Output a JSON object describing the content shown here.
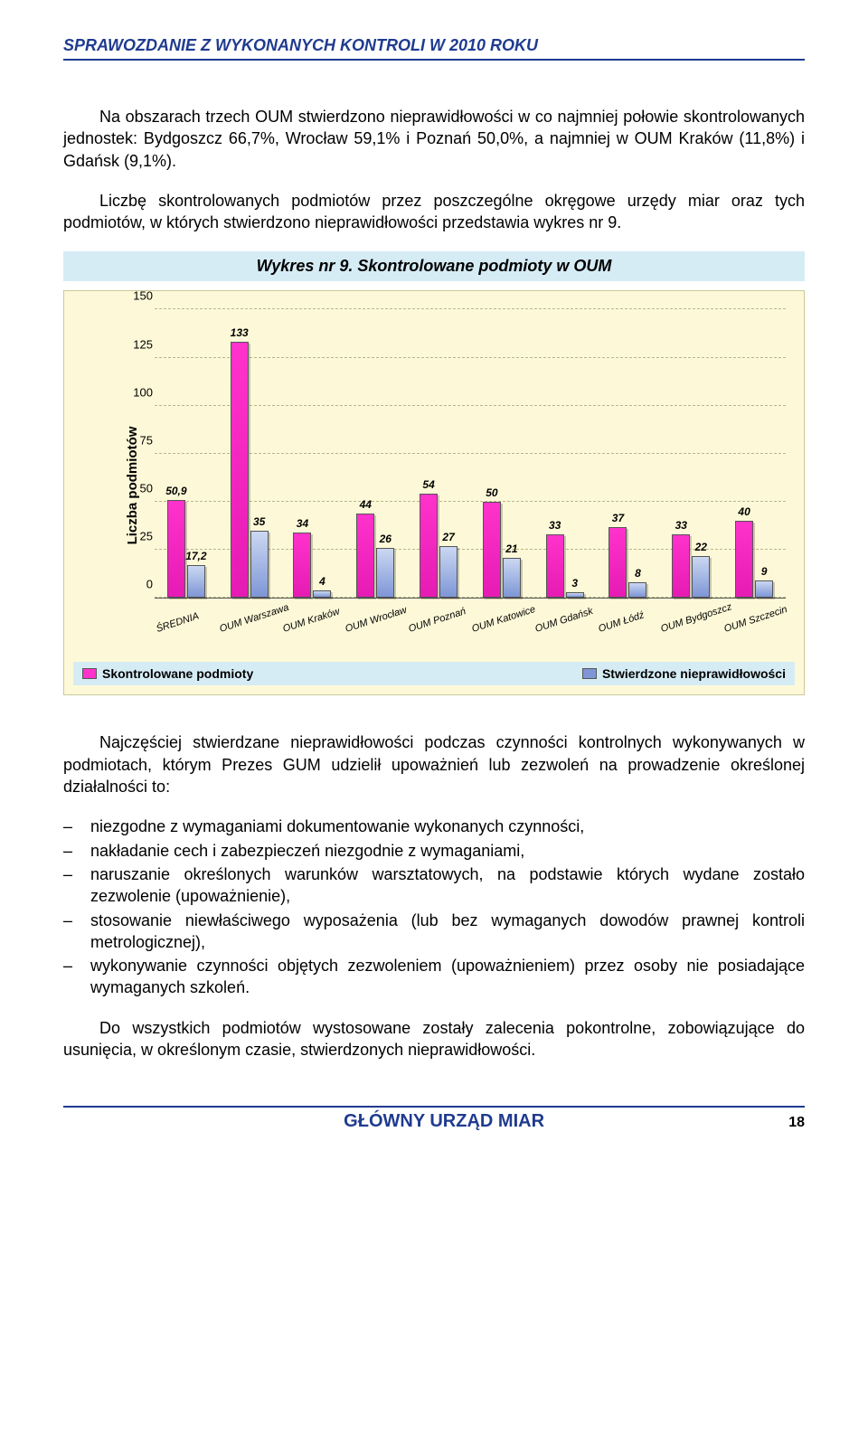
{
  "header": {
    "title": "SPRAWOZDANIE Z WYKONANYCH KONTROLI W 2010 ROKU"
  },
  "paragraphs": {
    "p1": "Na obszarach trzech OUM stwierdzono nieprawidłowości w co najmniej połowie skontrolowanych jednostek: Bydgoszcz 66,7%, Wrocław 59,1% i Poznań 50,0%, a najmniej w OUM Kraków (11,8%) i Gdańsk (9,1%).",
    "p2": "Liczbę skontrolowanych podmiotów przez poszczególne okręgowe urzędy miar oraz tych podmiotów, w których stwierdzono nieprawidłowości przedstawia wykres nr 9.",
    "p3": "Najczęściej stwierdzane nieprawidłowości podczas czynności kontrolnych wykonywanych w podmiotach, którym Prezes GUM udzielił upoważnień lub zezwoleń na prowadzenie określonej działalności to:",
    "p4": "Do wszystkich podmiotów wystosowane zostały zalecenia pokontrolne, zobowiązujące do usunięcia, w określonym czasie, stwierdzonych nieprawidłowości."
  },
  "list": {
    "items": [
      "niezgodne z wymaganiami dokumentowanie wykonanych czynności,",
      "nakładanie cech i zabezpieczeń niezgodnie z wymaganiami,",
      "naruszanie określonych warunków warsztatowych, na podstawie których wydane zostało zezwolenie (upoważnienie),",
      "stosowanie niewłaściwego wyposażenia (lub bez wymaganych dowodów prawnej kontroli metrologicznej),",
      "wykonywanie czynności objętych zezwoleniem (upoważnieniem) przez osoby nie posiadające wymaganych szkoleń."
    ]
  },
  "chart": {
    "title": "Wykres nr 9. Skontrolowane podmioty w OUM",
    "type": "bar",
    "y_label": "Liczba podmiotów",
    "ylim_max": 150,
    "ytick_step": 25,
    "yticks": [
      "0",
      "25",
      "50",
      "75",
      "100",
      "125",
      "150"
    ],
    "background_color": "#fdf9d8",
    "grid_color": "#b7b78a",
    "categories": [
      "ŚREDNIA",
      "OUM Warszawa",
      "OUM Kraków",
      "OUM Wrocław",
      "OUM Poznań",
      "OUM Katowice",
      "OUM Gdańsk",
      "OUM Łódź",
      "OUM Bydgoszcz",
      "OUM Szczecin"
    ],
    "series": {
      "skontrolowane": {
        "label": "Skontrolowane podmioty",
        "color": "#ff33cc",
        "values": [
          50.9,
          133,
          34,
          44,
          54,
          50,
          33,
          37,
          33,
          40
        ],
        "display": [
          "50,9",
          "133",
          "34",
          "44",
          "54",
          "50",
          "33",
          "37",
          "33",
          "40"
        ]
      },
      "nieprawidlowosci": {
        "label": "Stwierdzone nieprawidłowości",
        "color": "#7e96d6",
        "values": [
          17.2,
          35,
          4,
          26,
          27,
          21,
          3,
          8,
          22,
          9
        ],
        "display": [
          "17,2",
          "35",
          "4",
          "26",
          "27",
          "21",
          "3",
          "8",
          "22",
          "9"
        ]
      }
    }
  },
  "footer": {
    "org": "GŁÓWNY URZĄD MIAR",
    "page": "18"
  }
}
